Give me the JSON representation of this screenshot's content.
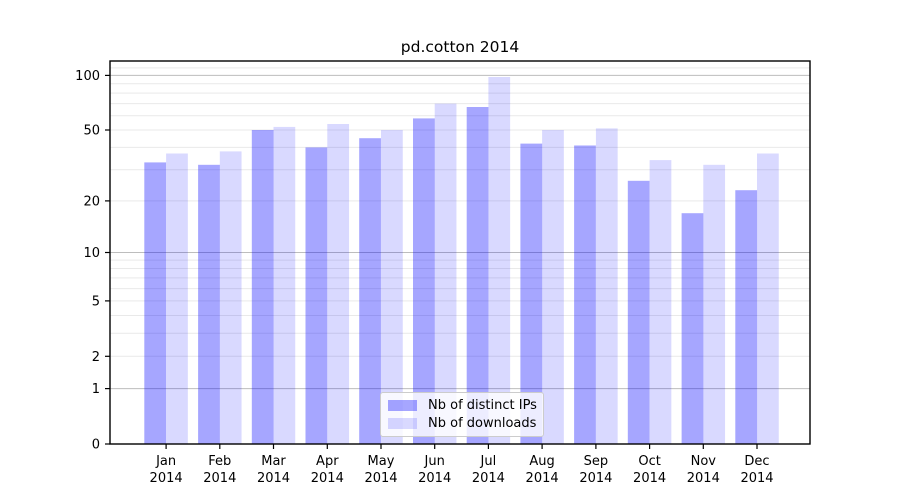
{
  "chart_data": {
    "type": "bar",
    "title": "pd.cotton 2014",
    "categories": [
      "Jan",
      "Feb",
      "Mar",
      "Apr",
      "May",
      "Jun",
      "Jul",
      "Aug",
      "Sep",
      "Oct",
      "Nov",
      "Dec"
    ],
    "year": "2014",
    "series": [
      {
        "name": "Nb of distinct IPs",
        "color": "rgba(0,0,255,0.35)",
        "color_hex": "#a6a6f4",
        "values": [
          33,
          32,
          50,
          40,
          45,
          58,
          67,
          42,
          41,
          26,
          17,
          23
        ]
      },
      {
        "name": "Nb of downloads",
        "color": "rgba(0,0,255,0.15)",
        "color_hex": "#d9d9fa",
        "values": [
          37,
          38,
          52,
          54,
          50,
          70,
          98,
          50,
          51,
          34,
          32,
          37
        ]
      }
    ],
    "yscale": "log1p",
    "ylim": [
      0,
      120
    ],
    "yticks": [
      0,
      1,
      2,
      5,
      10,
      20,
      50,
      100
    ],
    "grid": true,
    "grid_major_values": [
      1,
      10,
      100
    ],
    "grid_minor_values": [
      2,
      3,
      4,
      5,
      6,
      7,
      8,
      9,
      20,
      30,
      40,
      50,
      60,
      70,
      80,
      90,
      110
    ],
    "grid_major_color": "#bdbdbd",
    "grid_minor_color": "#e9e9e9",
    "legend_position": "lower center",
    "xlabel": "",
    "ylabel": ""
  }
}
